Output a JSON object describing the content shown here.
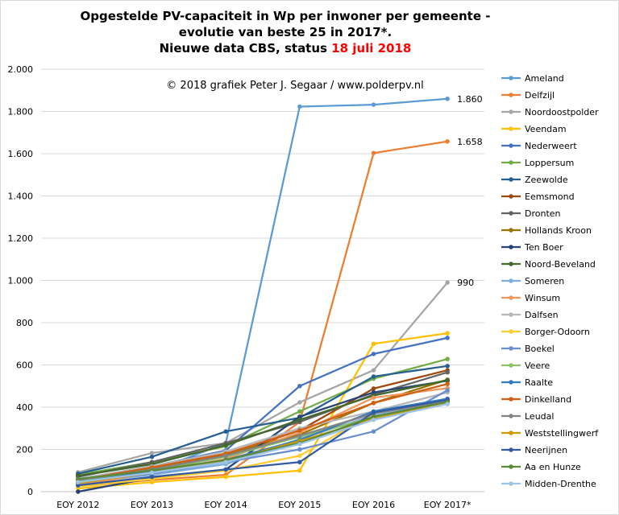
{
  "chart_data": {
    "type": "line",
    "title": {
      "line1": "Opgestelde PV-capaciteit in Wp per inwoner per gemeente -",
      "line2": "evolutie  van beste 25 in 2017*.",
      "line3": "Nieuwe data CBS, status",
      "line3_date": "18 juli 2018",
      "date_color": "#FF0000"
    },
    "annotation": "© 2018 grafiek Peter J. Segaar / www.polderpv.nl",
    "categories": [
      "EOY 2012",
      "EOY 2013",
      "EOY 2014",
      "EOY 2015",
      "EOY 2016",
      "EOY 2017*"
    ],
    "ylim": [
      0,
      2000
    ],
    "y_tick_values": [
      0,
      200,
      400,
      600,
      800,
      1000,
      1200,
      1400,
      1600,
      1800,
      2000
    ],
    "y_tick_labels": [
      "0",
      "200",
      "400",
      "600",
      "800",
      "1.000",
      "1.200",
      "1.400",
      "1.600",
      "1.800",
      "2.000"
    ],
    "grid": true,
    "legend_position": "right",
    "marker": "circle",
    "series": [
      {
        "name": "Ameland",
        "color": "#5B9BD5",
        "values": [
          40,
          95,
          230,
          1823,
          1832,
          1860
        ]
      },
      {
        "name": "Delfzijl",
        "color": "#ED7D31",
        "values": [
          25,
          55,
          80,
          330,
          1603,
          1658
        ]
      },
      {
        "name": "Noordoostpolder",
        "color": "#A5A5A5",
        "values": [
          92,
          183,
          230,
          423,
          575,
          990
        ]
      },
      {
        "name": "Veendam",
        "color": "#FFC000",
        "values": [
          15,
          45,
          70,
          100,
          700,
          750
        ]
      },
      {
        "name": "Nederweert",
        "color": "#4472C4",
        "values": [
          60,
          120,
          195,
          500,
          652,
          728
        ]
      },
      {
        "name": "Loppersum",
        "color": "#70AD47",
        "values": [
          80,
          140,
          215,
          380,
          535,
          628
        ]
      },
      {
        "name": "Zeewolde",
        "color": "#255E91",
        "values": [
          85,
          165,
          285,
          350,
          545,
          595
        ]
      },
      {
        "name": "Eemsmond",
        "color": "#9E480E",
        "values": [
          55,
          110,
          175,
          290,
          488,
          575
        ]
      },
      {
        "name": "Dronten",
        "color": "#636363",
        "values": [
          70,
          140,
          230,
          330,
          460,
          565
        ]
      },
      {
        "name": "Hollands Kroon",
        "color": "#997300",
        "values": [
          50,
          110,
          180,
          270,
          420,
          530
        ]
      },
      {
        "name": "Ten Boer",
        "color": "#264478",
        "values": [
          0,
          65,
          105,
          355,
          470,
          525
        ]
      },
      {
        "name": "Noord-Beveland",
        "color": "#43682B",
        "values": [
          75,
          130,
          220,
          340,
          455,
          528
        ]
      },
      {
        "name": "Someren",
        "color": "#7CAFDD",
        "values": [
          40,
          80,
          130,
          250,
          360,
          430
        ]
      },
      {
        "name": "Winsum",
        "color": "#F1975A",
        "values": [
          30,
          90,
          155,
          280,
          445,
          490
        ]
      },
      {
        "name": "Dalfsen",
        "color": "#B7B7B7",
        "values": [
          60,
          120,
          190,
          300,
          380,
          470
        ]
      },
      {
        "name": "Borger-Odoorn",
        "color": "#FFCD33",
        "values": [
          25,
          60,
          100,
          170,
          370,
          440
        ]
      },
      {
        "name": "Boekel",
        "color": "#698ED0",
        "values": [
          45,
          85,
          140,
          200,
          285,
          480
        ]
      },
      {
        "name": "Veere",
        "color": "#8CC168",
        "values": [
          50,
          100,
          165,
          260,
          350,
          425
        ]
      },
      {
        "name": "Raalte",
        "color": "#327DC2",
        "values": [
          45,
          95,
          150,
          245,
          380,
          440
        ]
      },
      {
        "name": "Dinkelland",
        "color": "#D26012",
        "values": [
          55,
          115,
          180,
          290,
          420,
          510
        ]
      },
      {
        "name": "Leudal",
        "color": "#848484",
        "values": [
          55,
          105,
          170,
          265,
          370,
          430
        ]
      },
      {
        "name": "Weststellingwerf",
        "color": "#CC9A00",
        "values": [
          40,
          90,
          145,
          240,
          345,
          420
        ]
      },
      {
        "name": "Neerijnen",
        "color": "#335AA1",
        "values": [
          30,
          70,
          105,
          140,
          375,
          435
        ]
      },
      {
        "name": "Aa en Hunze",
        "color": "#5A8A39",
        "values": [
          60,
          100,
          150,
          230,
          355,
          425
        ]
      },
      {
        "name": "Midden-Drenthe",
        "color": "#9DC3E6",
        "values": [
          45,
          90,
          140,
          225,
          340,
          415
        ]
      }
    ],
    "data_labels": [
      {
        "series": "Ameland",
        "category": "EOY 2017*",
        "text": "1.860"
      },
      {
        "series": "Delfzijl",
        "category": "EOY 2017*",
        "text": "1.658"
      },
      {
        "series": "Noordoostpolder",
        "category": "EOY 2017*",
        "text": "990"
      }
    ]
  }
}
